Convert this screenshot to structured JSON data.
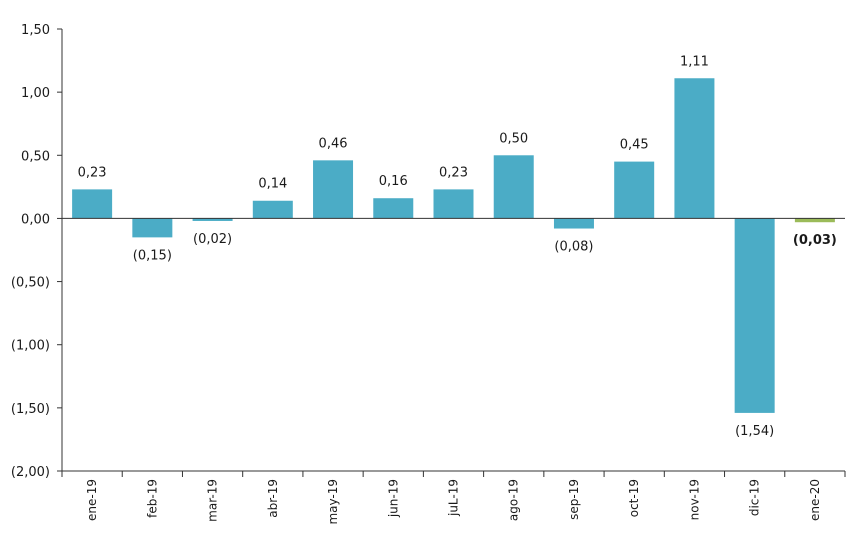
{
  "chart_data": {
    "type": "bar",
    "categories": [
      "ene-19",
      "feb-19",
      "mar-19",
      "abr-19",
      "may-19",
      "jun-19",
      "juL-19",
      "ago-19",
      "sep-19",
      "oct-19",
      "nov-19",
      "dic-19",
      "ene-20"
    ],
    "values": [
      0.23,
      -0.15,
      -0.02,
      0.14,
      0.46,
      0.16,
      0.23,
      0.5,
      -0.08,
      0.45,
      1.11,
      -1.54,
      -0.03
    ],
    "data_labels": [
      "0,23",
      "(0,15)",
      "(0,02)",
      "0,14",
      "0,46",
      "0,16",
      "0,23",
      "0,50",
      "(0,08)",
      "0,45",
      "1,11",
      "(1,54)",
      "(0,03)"
    ],
    "ylim": [
      -2.0,
      1.5
    ],
    "yticks": [
      1.5,
      1.0,
      0.5,
      0.0,
      -0.5,
      -1.0,
      -1.5,
      -2.0
    ],
    "ytick_labels": [
      "1,50",
      "1,00",
      "0,50",
      "0,00",
      "(0,50)",
      "(1,00)",
      "(1,50)",
      "(2,00)"
    ],
    "colors": {
      "bar": "#4bacc6",
      "highlight": "#9bbb59"
    },
    "highlight_index": 12,
    "grid": false,
    "title": "",
    "xlabel": "",
    "ylabel": ""
  }
}
